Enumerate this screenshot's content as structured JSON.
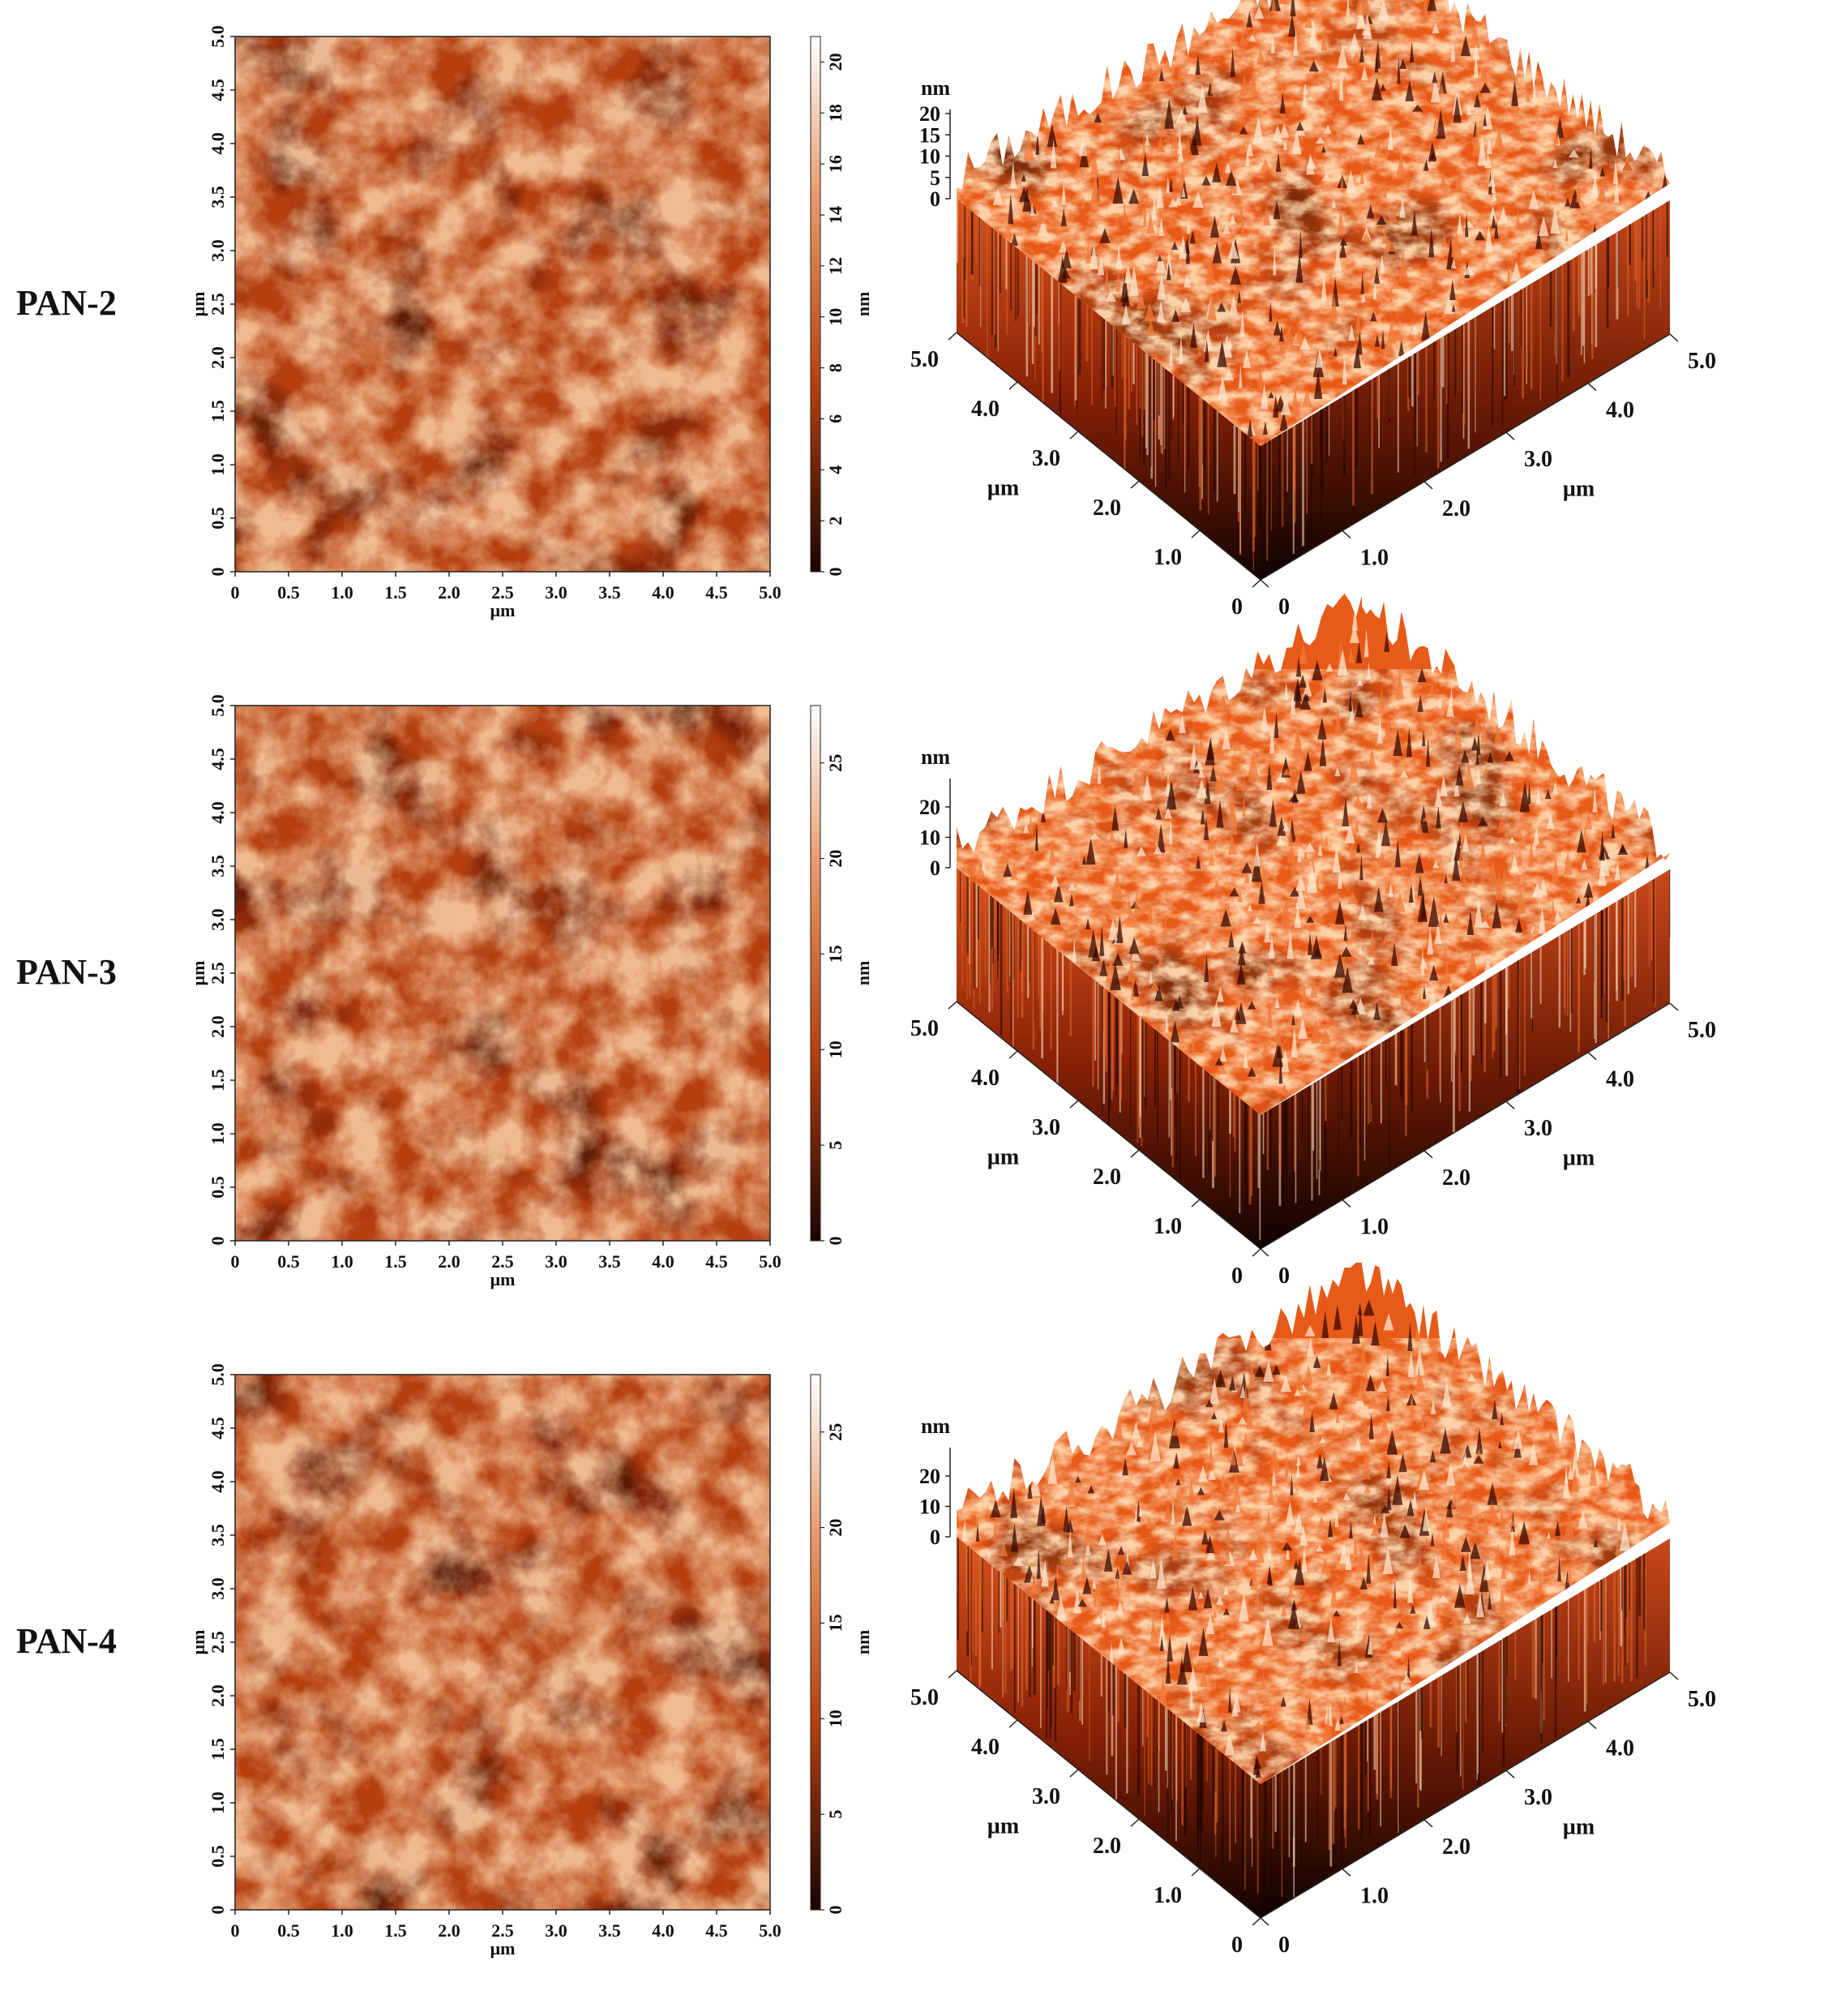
{
  "colorscale": {
    "dark": "#2a0800",
    "mid": "#b5400f",
    "light": "#fff0dc",
    "accent": "#e85a18"
  },
  "axis_unit": "µm",
  "height_unit": "nm",
  "xy_ticks": [
    "0",
    "0.5",
    "1.0",
    "1.5",
    "2.0",
    "2.5",
    "3.0",
    "3.5",
    "4.0",
    "4.5",
    "5.0"
  ],
  "iso_left_ticks": [
    "0",
    "1.0",
    "2.0",
    "3.0",
    "4.0",
    "5.0"
  ],
  "iso_right_ticks": [
    "0",
    "1.0",
    "2.0",
    "3.0",
    "4.0",
    "5.0"
  ],
  "iso_left_unit": "µm",
  "iso_right_unit": "µm",
  "panels": [
    {
      "label": "PAN-2",
      "colorbar_ticks": [
        "0",
        "2",
        "4",
        "6",
        "8",
        "10",
        "12",
        "14",
        "16",
        "18",
        "20"
      ],
      "colorbar_max": 21,
      "height_ticks": [
        "0",
        "5",
        "10",
        "15",
        "20"
      ],
      "height_max": 20
    },
    {
      "label": "PAN-3",
      "colorbar_ticks": [
        "0",
        "5",
        "10",
        "15",
        "20",
        "25"
      ],
      "colorbar_max": 28,
      "height_ticks": [
        "0",
        "10",
        "20"
      ],
      "height_max": 28
    },
    {
      "label": "PAN-4",
      "colorbar_ticks": [
        "0",
        "5",
        "10",
        "15",
        "20",
        "25"
      ],
      "colorbar_max": 28,
      "height_ticks": [
        "0",
        "10",
        "20"
      ],
      "height_max": 28
    }
  ]
}
